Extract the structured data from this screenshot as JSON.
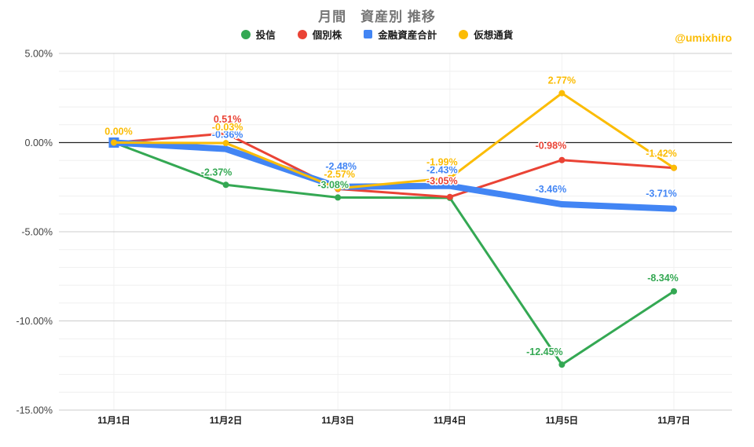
{
  "watermark": "@umixhiro",
  "chart_data": {
    "type": "line",
    "title": "月間　資産別 推移",
    "xlabel": "",
    "ylabel": "",
    "ylim": [
      -15,
      5
    ],
    "grid": true,
    "legend_position": "top",
    "categories": [
      "11月1日",
      "11月2日",
      "11月3日",
      "11月4日",
      "11月5日",
      "11月7日"
    ],
    "y_tick_labels": [
      "5.00%",
      "0.00%",
      "-5.00%",
      "-10.00%",
      "-15.00%"
    ],
    "y_tick_values": [
      5,
      0,
      -5,
      -10,
      -15
    ],
    "series": [
      {
        "id": "mutual-funds",
        "name": "投信",
        "color": "#34A853",
        "marker": "circle",
        "line_width": 3,
        "values": [
          0.0,
          -2.37,
          -3.08,
          -3.1,
          -12.45,
          -8.34
        ],
        "labels": [
          "",
          "-2.37%",
          "-3.08%",
          "",
          "-12.45%",
          "-8.34%"
        ]
      },
      {
        "id": "individual-stocks",
        "name": "個別株",
        "color": "#EA4335",
        "marker": "circle",
        "line_width": 3,
        "values": [
          0.0,
          0.51,
          -2.6,
          -3.05,
          -0.98,
          -1.42
        ],
        "labels": [
          "",
          "0.51%",
          "",
          "-3.05%",
          "-0.98%",
          ""
        ]
      },
      {
        "id": "total-financial-assets",
        "name": "金融資産合計",
        "color": "#4285F4",
        "marker": "square",
        "line_width": 8,
        "values": [
          0.0,
          -0.36,
          -2.48,
          -2.43,
          -3.46,
          -3.71
        ],
        "labels": [
          "",
          "-0.36%",
          "-2.48%",
          "-2.43%",
          "-3.46%",
          "-3.71%"
        ]
      },
      {
        "id": "crypto",
        "name": "仮想通貨",
        "color": "#FBBC04",
        "marker": "circle",
        "line_width": 3,
        "values": [
          0.0,
          -0.03,
          -2.57,
          -1.99,
          2.77,
          -1.42
        ],
        "labels": [
          "0.00%",
          "-0.03%",
          "-2.57%",
          "-1.99%",
          "2.77%",
          "-1.42%"
        ]
      }
    ]
  }
}
